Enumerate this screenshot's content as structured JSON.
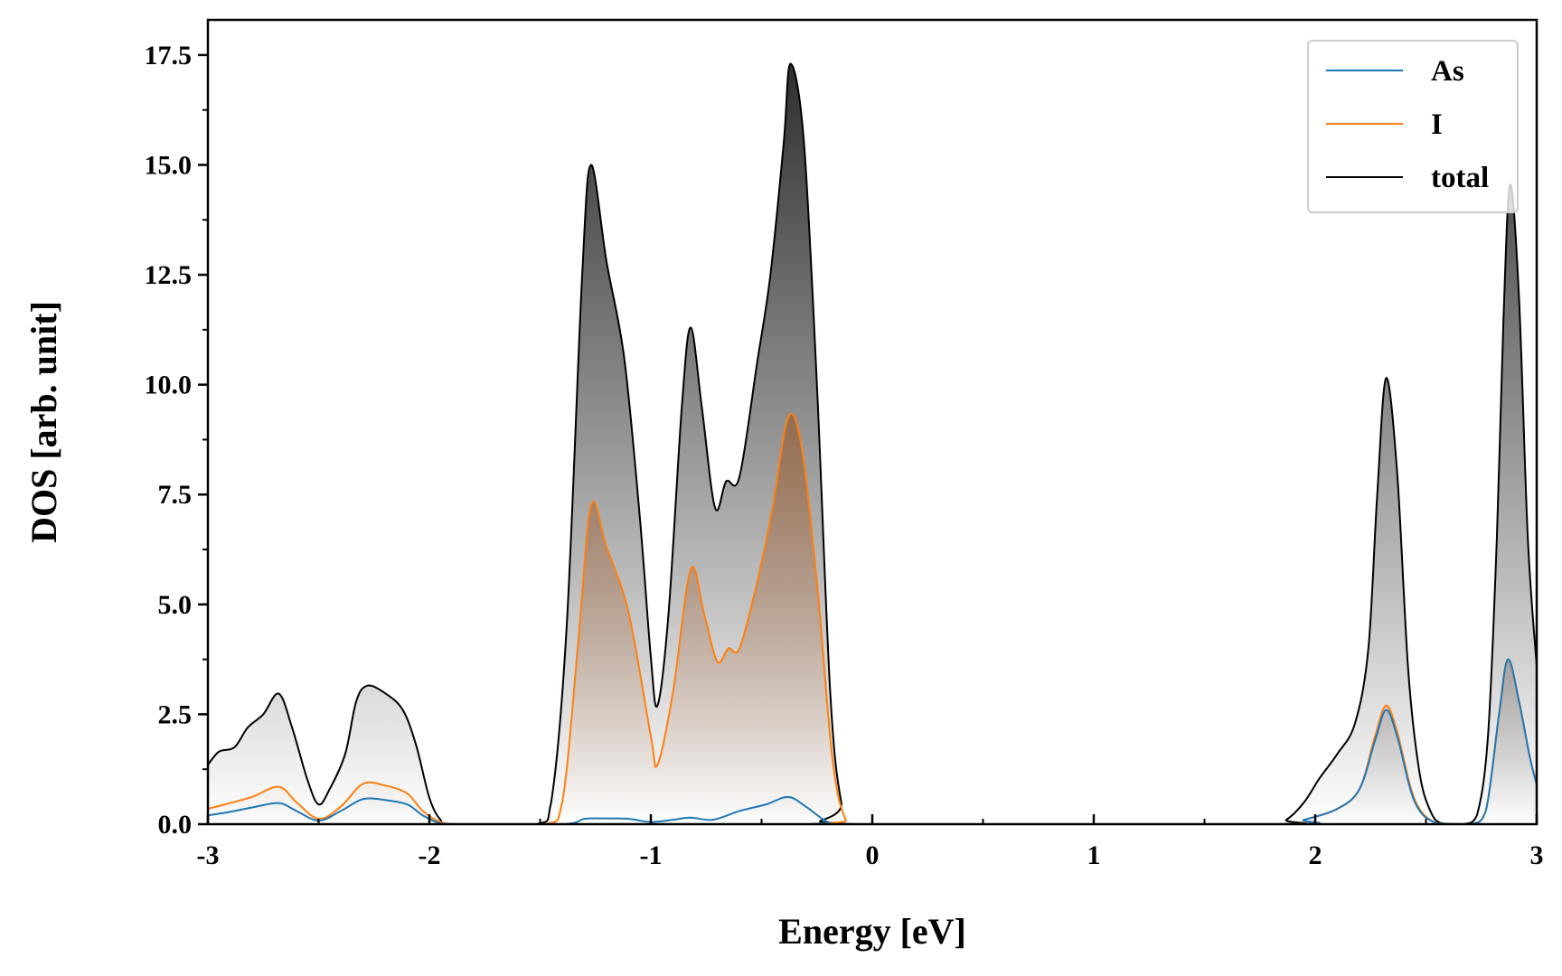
{
  "chart_data": {
    "type": "area",
    "title": "",
    "xlabel": "Energy [eV]",
    "ylabel": "DOS [arb. unit]",
    "xlim": [
      -3,
      3
    ],
    "ylim": [
      0,
      18.3
    ],
    "x_major_ticks": [
      -3,
      -2,
      -1,
      0,
      1,
      2,
      3
    ],
    "x_tick_labels": [
      "-3",
      "-2",
      "-1",
      "0",
      "1",
      "2",
      "3"
    ],
    "x_minor_step": 0.5,
    "y_major_ticks": [
      0,
      2.5,
      5,
      7.5,
      10,
      12.5,
      15,
      17.5
    ],
    "y_tick_labels": [
      "0.0",
      "2.5",
      "5.0",
      "7.5",
      "10.0",
      "12.5",
      "15.0",
      "17.5"
    ],
    "y_minor_step": 1.25,
    "grid": false,
    "legend_position": "top-right",
    "series": [
      {
        "name": "As",
        "color": "#1f77b4",
        "fill_color": "#1f4e79",
        "points": [
          [
            -3.0,
            0.2
          ],
          [
            -2.9,
            0.28
          ],
          [
            -2.8,
            0.38
          ],
          [
            -2.68,
            0.48
          ],
          [
            -2.6,
            0.3
          ],
          [
            -2.5,
            0.08
          ],
          [
            -2.4,
            0.3
          ],
          [
            -2.3,
            0.57
          ],
          [
            -2.2,
            0.55
          ],
          [
            -2.1,
            0.45
          ],
          [
            -2.03,
            0.2
          ],
          [
            -1.95,
            0.02
          ],
          [
            -1.85,
            0.0
          ],
          [
            -1.4,
            0.0
          ],
          [
            -1.3,
            0.12
          ],
          [
            -1.2,
            0.13
          ],
          [
            -1.1,
            0.12
          ],
          [
            -1.0,
            0.05
          ],
          [
            -0.9,
            0.1
          ],
          [
            -0.82,
            0.15
          ],
          [
            -0.72,
            0.1
          ],
          [
            -0.6,
            0.3
          ],
          [
            -0.48,
            0.45
          ],
          [
            -0.38,
            0.62
          ],
          [
            -0.3,
            0.4
          ],
          [
            -0.2,
            0.05
          ],
          [
            -0.1,
            0.0
          ],
          [
            1.85,
            0.0
          ],
          [
            1.95,
            0.1
          ],
          [
            2.1,
            0.35
          ],
          [
            2.2,
            0.8
          ],
          [
            2.27,
            1.9
          ],
          [
            2.32,
            2.6
          ],
          [
            2.37,
            2.0
          ],
          [
            2.45,
            0.5
          ],
          [
            2.55,
            0.02
          ],
          [
            2.7,
            0.0
          ],
          [
            2.77,
            0.3
          ],
          [
            2.83,
            2.5
          ],
          [
            2.87,
            3.75
          ],
          [
            2.92,
            2.8
          ],
          [
            2.97,
            1.5
          ],
          [
            3.0,
            0.9
          ]
        ]
      },
      {
        "name": "I",
        "color": "#ff7f0e",
        "fill_color": "#9a4a12",
        "points": [
          [
            -3.0,
            0.35
          ],
          [
            -2.9,
            0.48
          ],
          [
            -2.8,
            0.62
          ],
          [
            -2.68,
            0.85
          ],
          [
            -2.6,
            0.5
          ],
          [
            -2.5,
            0.12
          ],
          [
            -2.4,
            0.4
          ],
          [
            -2.3,
            0.92
          ],
          [
            -2.2,
            0.88
          ],
          [
            -2.1,
            0.7
          ],
          [
            -2.03,
            0.3
          ],
          [
            -1.95,
            0.05
          ],
          [
            -1.85,
            0.0
          ],
          [
            -1.48,
            0.0
          ],
          [
            -1.4,
            0.5
          ],
          [
            -1.33,
            4.0
          ],
          [
            -1.27,
            7.25
          ],
          [
            -1.2,
            6.3
          ],
          [
            -1.1,
            4.8
          ],
          [
            -1.0,
            2.0
          ],
          [
            -0.97,
            1.35
          ],
          [
            -0.9,
            3.0
          ],
          [
            -0.82,
            5.8
          ],
          [
            -0.76,
            4.8
          ],
          [
            -0.7,
            3.7
          ],
          [
            -0.65,
            4.0
          ],
          [
            -0.6,
            4.0
          ],
          [
            -0.52,
            5.5
          ],
          [
            -0.45,
            7.2
          ],
          [
            -0.38,
            9.25
          ],
          [
            -0.32,
            8.6
          ],
          [
            -0.25,
            5.5
          ],
          [
            -0.18,
            1.5
          ],
          [
            -0.12,
            0.1
          ],
          [
            -0.05,
            0.0
          ],
          [
            1.85,
            0.0
          ],
          [
            1.95,
            0.1
          ],
          [
            2.1,
            0.35
          ],
          [
            2.2,
            0.8
          ],
          [
            2.27,
            2.0
          ],
          [
            2.32,
            2.7
          ],
          [
            2.37,
            2.1
          ],
          [
            2.45,
            0.55
          ],
          [
            2.55,
            0.02
          ],
          [
            2.7,
            0.0
          ],
          [
            2.77,
            0.3
          ],
          [
            2.83,
            2.5
          ],
          [
            2.87,
            3.75
          ],
          [
            2.92,
            2.8
          ],
          [
            2.97,
            1.5
          ],
          [
            3.0,
            0.95
          ]
        ]
      },
      {
        "name": "total",
        "color": "#000000",
        "fill_color": "#222222",
        "points": [
          [
            -3.0,
            1.35
          ],
          [
            -2.95,
            1.65
          ],
          [
            -2.88,
            1.75
          ],
          [
            -2.82,
            2.2
          ],
          [
            -2.75,
            2.5
          ],
          [
            -2.68,
            2.97
          ],
          [
            -2.62,
            2.2
          ],
          [
            -2.55,
            1.0
          ],
          [
            -2.5,
            0.45
          ],
          [
            -2.45,
            0.8
          ],
          [
            -2.38,
            1.6
          ],
          [
            -2.33,
            2.8
          ],
          [
            -2.28,
            3.15
          ],
          [
            -2.2,
            2.98
          ],
          [
            -2.12,
            2.6
          ],
          [
            -2.06,
            1.8
          ],
          [
            -2.0,
            0.6
          ],
          [
            -1.95,
            0.1
          ],
          [
            -1.9,
            0.0
          ],
          [
            -1.52,
            0.0
          ],
          [
            -1.45,
            0.5
          ],
          [
            -1.38,
            4.5
          ],
          [
            -1.31,
            12.5
          ],
          [
            -1.27,
            15.0
          ],
          [
            -1.2,
            12.8
          ],
          [
            -1.12,
            10.6
          ],
          [
            -1.05,
            7.0
          ],
          [
            -1.0,
            3.8
          ],
          [
            -0.97,
            2.7
          ],
          [
            -0.92,
            4.8
          ],
          [
            -0.86,
            9.5
          ],
          [
            -0.82,
            11.3
          ],
          [
            -0.77,
            9.5
          ],
          [
            -0.71,
            7.2
          ],
          [
            -0.66,
            7.8
          ],
          [
            -0.6,
            7.9
          ],
          [
            -0.52,
            10.5
          ],
          [
            -0.46,
            12.5
          ],
          [
            -0.4,
            15.5
          ],
          [
            -0.37,
            17.3
          ],
          [
            -0.31,
            15.6
          ],
          [
            -0.25,
            10.0
          ],
          [
            -0.19,
            3.0
          ],
          [
            -0.14,
            0.5
          ],
          [
            -0.08,
            0.0
          ],
          [
            1.8,
            0.0
          ],
          [
            1.87,
            0.1
          ],
          [
            1.95,
            0.5
          ],
          [
            2.02,
            1.05
          ],
          [
            2.1,
            1.6
          ],
          [
            2.18,
            2.3
          ],
          [
            2.24,
            4.0
          ],
          [
            2.28,
            7.5
          ],
          [
            2.32,
            10.15
          ],
          [
            2.37,
            8.0
          ],
          [
            2.42,
            3.5
          ],
          [
            2.47,
            1.2
          ],
          [
            2.52,
            0.3
          ],
          [
            2.57,
            0.02
          ],
          [
            2.67,
            0.0
          ],
          [
            2.73,
            0.2
          ],
          [
            2.78,
            2.0
          ],
          [
            2.82,
            6.5
          ],
          [
            2.85,
            11.5
          ],
          [
            2.88,
            14.55
          ],
          [
            2.92,
            12.0
          ],
          [
            2.96,
            6.5
          ],
          [
            3.0,
            3.6
          ]
        ]
      }
    ]
  }
}
